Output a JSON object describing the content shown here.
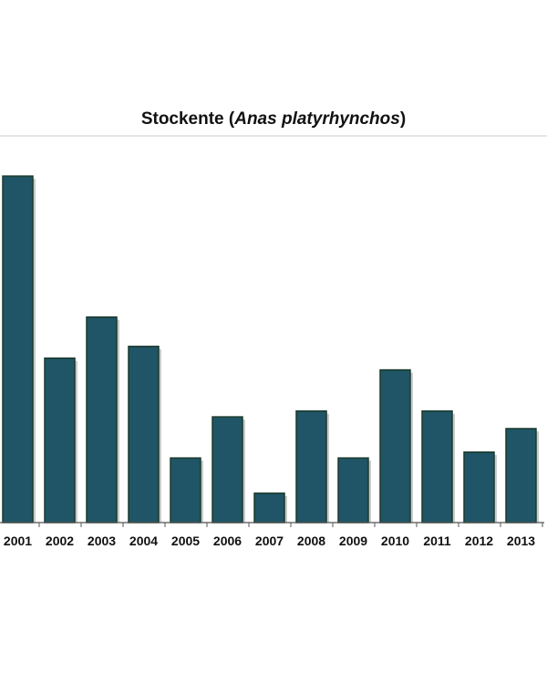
{
  "chart_data": {
    "type": "bar",
    "title_prefix": "Stockente (",
    "title_species": "Anas platyrhynchos",
    "title_suffix": ")",
    "categories": [
      "2001",
      "2002",
      "2003",
      "2004",
      "2005",
      "2006",
      "2007",
      "2008",
      "2009",
      "2010",
      "2011",
      "2012",
      "2013"
    ],
    "values": [
      59,
      28,
      35,
      30,
      11,
      18,
      5,
      19,
      11,
      26,
      19,
      12,
      16
    ],
    "ylim": [
      0,
      66
    ],
    "grid": false,
    "colors": {
      "bar": "#1f5566",
      "bar_edge": "#1b3a2c",
      "bar_shadow": "#9aa3a3",
      "axis": "#555555",
      "frame": "#cccccc"
    }
  }
}
